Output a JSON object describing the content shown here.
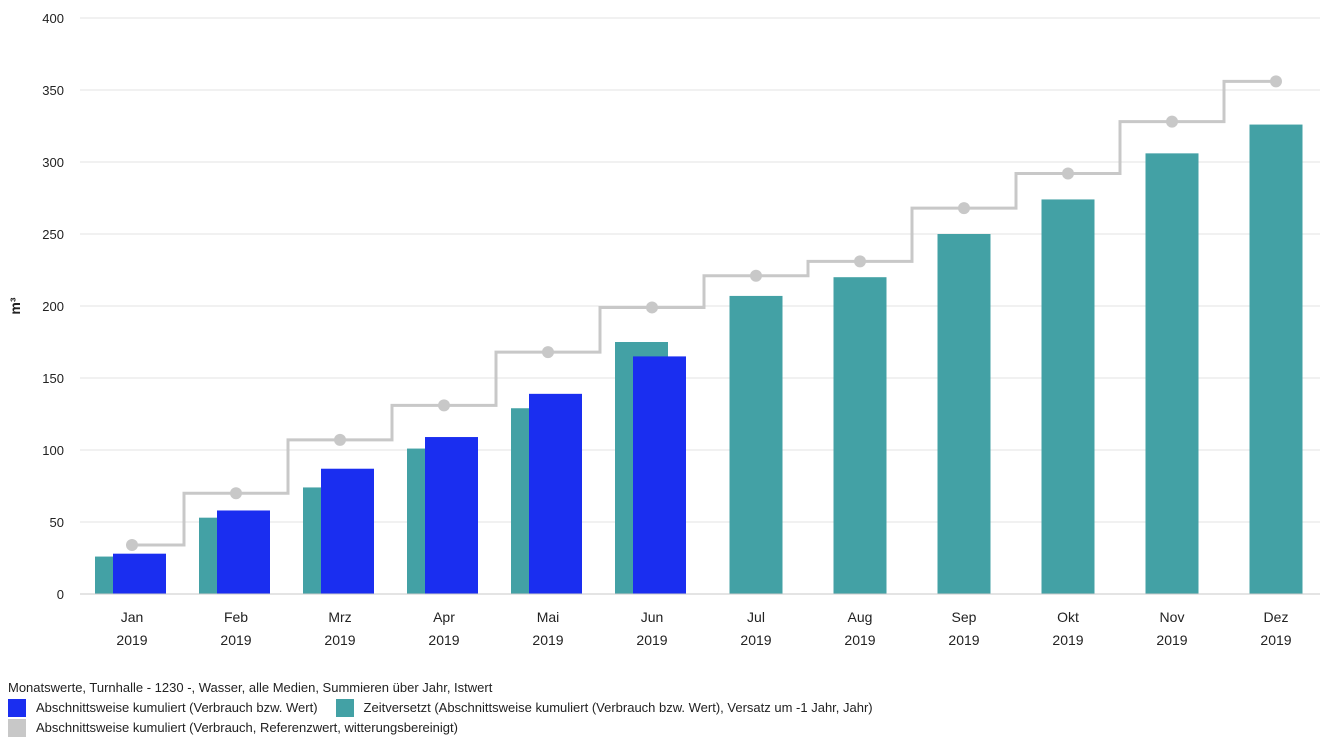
{
  "chart_data": {
    "type": "bar",
    "ylabel": "m³",
    "ylim": [
      0,
      400
    ],
    "yticks": [
      0,
      50,
      100,
      150,
      200,
      250,
      300,
      350,
      400
    ],
    "grid": true,
    "categories": [
      {
        "month": "Jan",
        "year": "2019"
      },
      {
        "month": "Feb",
        "year": "2019"
      },
      {
        "month": "Mrz",
        "year": "2019"
      },
      {
        "month": "Apr",
        "year": "2019"
      },
      {
        "month": "Mai",
        "year": "2019"
      },
      {
        "month": "Jun",
        "year": "2019"
      },
      {
        "month": "Jul",
        "year": "2019"
      },
      {
        "month": "Aug",
        "year": "2019"
      },
      {
        "month": "Sep",
        "year": "2019"
      },
      {
        "month": "Okt",
        "year": "2019"
      },
      {
        "month": "Nov",
        "year": "2019"
      },
      {
        "month": "Dez",
        "year": "2019"
      }
    ],
    "series": [
      {
        "name": "Abschnittsweise kumuliert (Verbrauch bzw. Wert)",
        "kind": "bar",
        "color": "#1a2ef0",
        "values": [
          28,
          58,
          87,
          109,
          139,
          165,
          null,
          null,
          null,
          null,
          null,
          null
        ]
      },
      {
        "name": "Zeitversetzt (Abschnittsweise kumuliert (Verbrauch bzw. Wert), Versatz um -1 Jahr, Jahr)",
        "kind": "bar",
        "color": "#43a1a5",
        "values": [
          26,
          53,
          74,
          101,
          129,
          175,
          207,
          220,
          250,
          274,
          306,
          326
        ]
      },
      {
        "name": "Abschnittsweise kumuliert (Verbrauch, Referenzwert, witterungsbereinigt)",
        "kind": "step-line",
        "color": "#c8c8c8",
        "values": [
          34,
          70,
          107,
          131,
          168,
          199,
          221,
          231,
          268,
          292,
          328,
          356
        ]
      }
    ]
  },
  "legend": {
    "caption": "Monatswerte, Turnhalle - 1230 -, Wasser, alle Medien, Summieren über Jahr, Istwert"
  }
}
